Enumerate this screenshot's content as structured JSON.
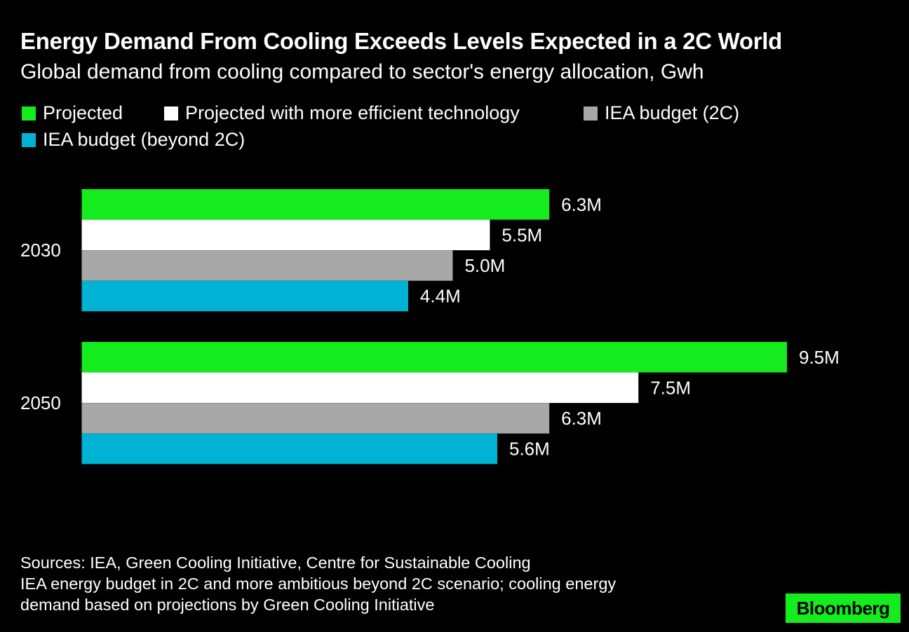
{
  "title": "Energy Demand From Cooling Exceeds Levels Expected in a 2C World",
  "subtitle": "Global demand from cooling compared to sector's energy allocation, Gwh",
  "legend": [
    {
      "label": "Projected",
      "color": "#14ec1e"
    },
    {
      "label": "Projected with more efficient technology",
      "color": "#ffffff"
    },
    {
      "label": "IEA budget (2C)",
      "color": "#a8a8a8"
    },
    {
      "label": "IEA budget (beyond 2C)",
      "color": "#00b2d4"
    }
  ],
  "chart_data": {
    "type": "bar",
    "orientation": "horizontal",
    "categories": [
      "2030",
      "2050"
    ],
    "series": [
      {
        "name": "Projected",
        "color": "#14ec1e",
        "values": [
          6.3,
          9.5
        ],
        "labels": [
          "6.3M",
          "9.5M"
        ]
      },
      {
        "name": "Projected with more efficient technology",
        "color": "#ffffff",
        "values": [
          5.5,
          7.5
        ],
        "labels": [
          "5.5M",
          "7.5M"
        ]
      },
      {
        "name": "IEA budget (2C)",
        "color": "#a8a8a8",
        "values": [
          5.0,
          6.3
        ],
        "labels": [
          "5.0M",
          "6.3M"
        ]
      },
      {
        "name": "IEA budget (beyond 2C)",
        "color": "#00b2d4",
        "values": [
          4.4,
          5.6
        ],
        "labels": [
          "4.4M",
          "5.6M"
        ]
      }
    ],
    "unit": "M Gwh",
    "xlim": [
      0,
      9.5
    ],
    "grid": false,
    "legend_position": "top-left"
  },
  "footer": {
    "sources": "Sources: IEA, Green Cooling Initiative, Centre for Sustainable Cooling",
    "note_line1": "IEA energy budget in 2C and more ambitious beyond 2C scenario; cooling energy",
    "note_line2": "demand based on projections by Green Cooling Initiative"
  },
  "brand": {
    "name": "Bloomberg",
    "color": "#14ec1e"
  }
}
